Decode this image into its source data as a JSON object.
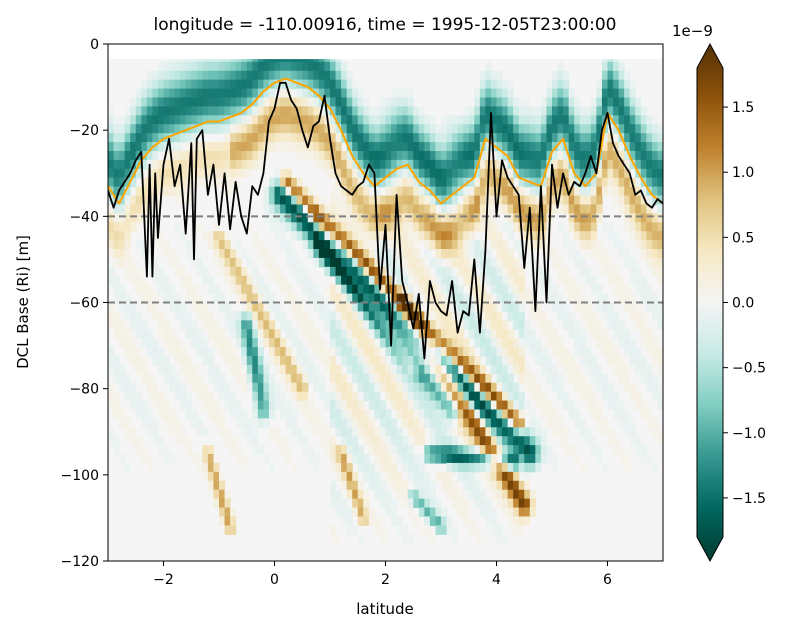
{
  "chart_data": {
    "type": "heatmap",
    "title": "longitude = -110.00916, time = 1995-12-05T23:00:00",
    "xlabel": "latitude",
    "ylabel": "DCL Base (Ri) [m]",
    "xlim": [
      -3,
      7
    ],
    "ylim": [
      -120,
      0
    ],
    "xticks": [
      -2,
      0,
      2,
      4,
      6
    ],
    "yticks": [
      0,
      -20,
      -40,
      -60,
      -80,
      -100,
      -120
    ],
    "grid": false,
    "colorbar": {
      "label": "",
      "offset_text": "1e−9",
      "vmin": -1.8,
      "vmax": 1.8,
      "ticks": [
        1.5,
        1.0,
        0.5,
        0.0,
        -0.5,
        -1.0,
        -1.5
      ],
      "extend": "both",
      "colormap": [
        "#003c30",
        "#01665e",
        "#35978f",
        "#80cdc1",
        "#c7eae5",
        "#f5f5f5",
        "#f6e8c3",
        "#dfc27d",
        "#bf812d",
        "#8c510a",
        "#543005"
      ]
    },
    "reference_lines": [
      {
        "y": -40,
        "style": "dashed",
        "color": "#808080"
      },
      {
        "y": -60,
        "style": "dashed",
        "color": "#808080"
      }
    ],
    "series": [
      {
        "color": "#ffa500",
        "x": [
          -3.0,
          -2.8,
          -2.6,
          -2.4,
          -2.2,
          -2.0,
          -1.8,
          -1.6,
          -1.4,
          -1.2,
          -1.0,
          -0.8,
          -0.6,
          -0.4,
          -0.2,
          0.0,
          0.2,
          0.4,
          0.6,
          0.8,
          1.0,
          1.2,
          1.4,
          1.6,
          1.8,
          2.0,
          2.2,
          2.4,
          2.6,
          2.8,
          3.0,
          3.2,
          3.4,
          3.6,
          3.8,
          4.0,
          4.2,
          4.4,
          4.6,
          4.8,
          5.0,
          5.2,
          5.4,
          5.6,
          5.8,
          6.0,
          6.2,
          6.4,
          6.6,
          6.8,
          7.0
        ],
        "y": [
          -33,
          -37,
          -32,
          -27,
          -24,
          -22,
          -21,
          -20,
          -19,
          -18,
          -18,
          -17,
          -16,
          -14,
          -11,
          -9,
          -8,
          -9,
          -10,
          -12,
          -15,
          -20,
          -26,
          -30,
          -33,
          -31,
          -29,
          -28,
          -32,
          -34,
          -37,
          -35,
          -33,
          -31,
          -22,
          -24,
          -26,
          -31,
          -32,
          -33,
          -25,
          -22,
          -30,
          -33,
          -30,
          -16,
          -20,
          -26,
          -31,
          -35,
          -37
        ]
      },
      {
        "color": "#000000",
        "x": [
          -3.0,
          -2.9,
          -2.8,
          -2.7,
          -2.6,
          -2.5,
          -2.4,
          -2.3,
          -2.25,
          -2.2,
          -2.15,
          -2.1,
          -2.0,
          -1.9,
          -1.8,
          -1.7,
          -1.6,
          -1.5,
          -1.45,
          -1.4,
          -1.3,
          -1.2,
          -1.1,
          -1.0,
          -0.9,
          -0.8,
          -0.7,
          -0.6,
          -0.5,
          -0.4,
          -0.3,
          -0.2,
          -0.1,
          0.0,
          0.1,
          0.2,
          0.3,
          0.4,
          0.5,
          0.6,
          0.7,
          0.8,
          0.9,
          1.0,
          1.1,
          1.2,
          1.3,
          1.4,
          1.5,
          1.6,
          1.7,
          1.8,
          1.9,
          2.0,
          2.1,
          2.2,
          2.3,
          2.4,
          2.5,
          2.6,
          2.7,
          2.8,
          2.9,
          3.0,
          3.1,
          3.2,
          3.3,
          3.4,
          3.5,
          3.6,
          3.7,
          3.8,
          3.9,
          4.0,
          4.1,
          4.2,
          4.3,
          4.4,
          4.5,
          4.6,
          4.7,
          4.8,
          4.9,
          5.0,
          5.1,
          5.2,
          5.3,
          5.4,
          5.5,
          5.6,
          5.7,
          5.8,
          5.9,
          6.0,
          6.1,
          6.2,
          6.3,
          6.4,
          6.5,
          6.6,
          6.7,
          6.8,
          6.9,
          7.0
        ],
        "y": [
          -34,
          -38,
          -34,
          -32,
          -30,
          -27,
          -25,
          -54,
          -28,
          -54,
          -30,
          -45,
          -28,
          -22,
          -33,
          -28,
          -44,
          -23,
          -50,
          -22,
          -20,
          -35,
          -28,
          -42,
          -30,
          -43,
          -32,
          -40,
          -44,
          -33,
          -35,
          -30,
          -18,
          -15,
          -9,
          -9,
          -13,
          -15,
          -20,
          -24,
          -19,
          -18,
          -12,
          -22,
          -30,
          -33,
          -34,
          -35,
          -33,
          -32,
          -28,
          -30,
          -57,
          -42,
          -70,
          -35,
          -55,
          -60,
          -66,
          -58,
          -73,
          -55,
          -60,
          -62,
          -63,
          -55,
          -67,
          -62,
          -63,
          -50,
          -67,
          -48,
          -16,
          -40,
          -27,
          -31,
          -33,
          -35,
          -52,
          -38,
          -62,
          -33,
          -60,
          -28,
          -38,
          -30,
          -35,
          -32,
          -33,
          -30,
          -26,
          -30,
          -20,
          -16,
          -23,
          -26,
          -28,
          -30,
          -35,
          -34,
          -37,
          -38,
          -36,
          -37
        ]
      }
    ]
  }
}
